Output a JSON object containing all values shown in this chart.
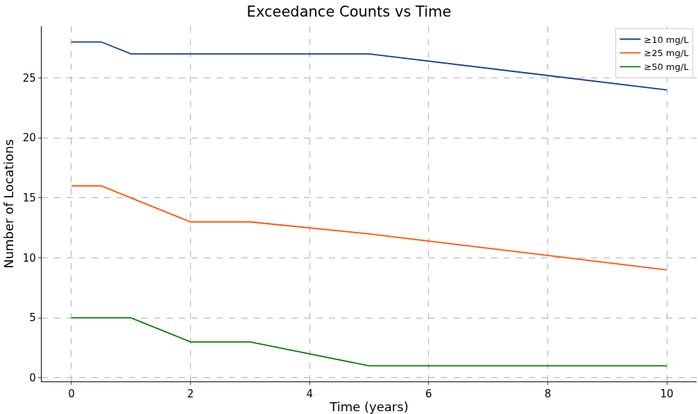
{
  "chart_data": {
    "type": "line",
    "title": "Exceedance Counts vs Time",
    "xlabel": "Time (years)",
    "ylabel": "Number of Locations",
    "x": [
      0,
      0.5,
      1,
      2,
      3,
      5,
      10
    ],
    "series": [
      {
        "name": "≥10 mg/L",
        "color": "#0b3d91",
        "values": [
          28,
          28,
          27,
          27,
          27,
          27,
          24
        ]
      },
      {
        "name": "≥25 mg/L",
        "color": "#ff4f00",
        "values": [
          16,
          16,
          15,
          13,
          13,
          12,
          9
        ]
      },
      {
        "name": "≥50 mg/L",
        "color": "#007f00",
        "values": [
          5,
          5,
          5,
          3,
          3,
          1,
          1
        ]
      }
    ],
    "xlim": [
      -0.5,
      10.5
    ],
    "xticks": [
      0,
      2,
      4,
      6,
      8,
      10
    ],
    "ylim": [
      -0.3,
      29.3
    ],
    "yticks": [
      0,
      5,
      10,
      15,
      20,
      25
    ],
    "grid": true,
    "legend": "top right",
    "marker": "none",
    "line_style": "solid"
  }
}
